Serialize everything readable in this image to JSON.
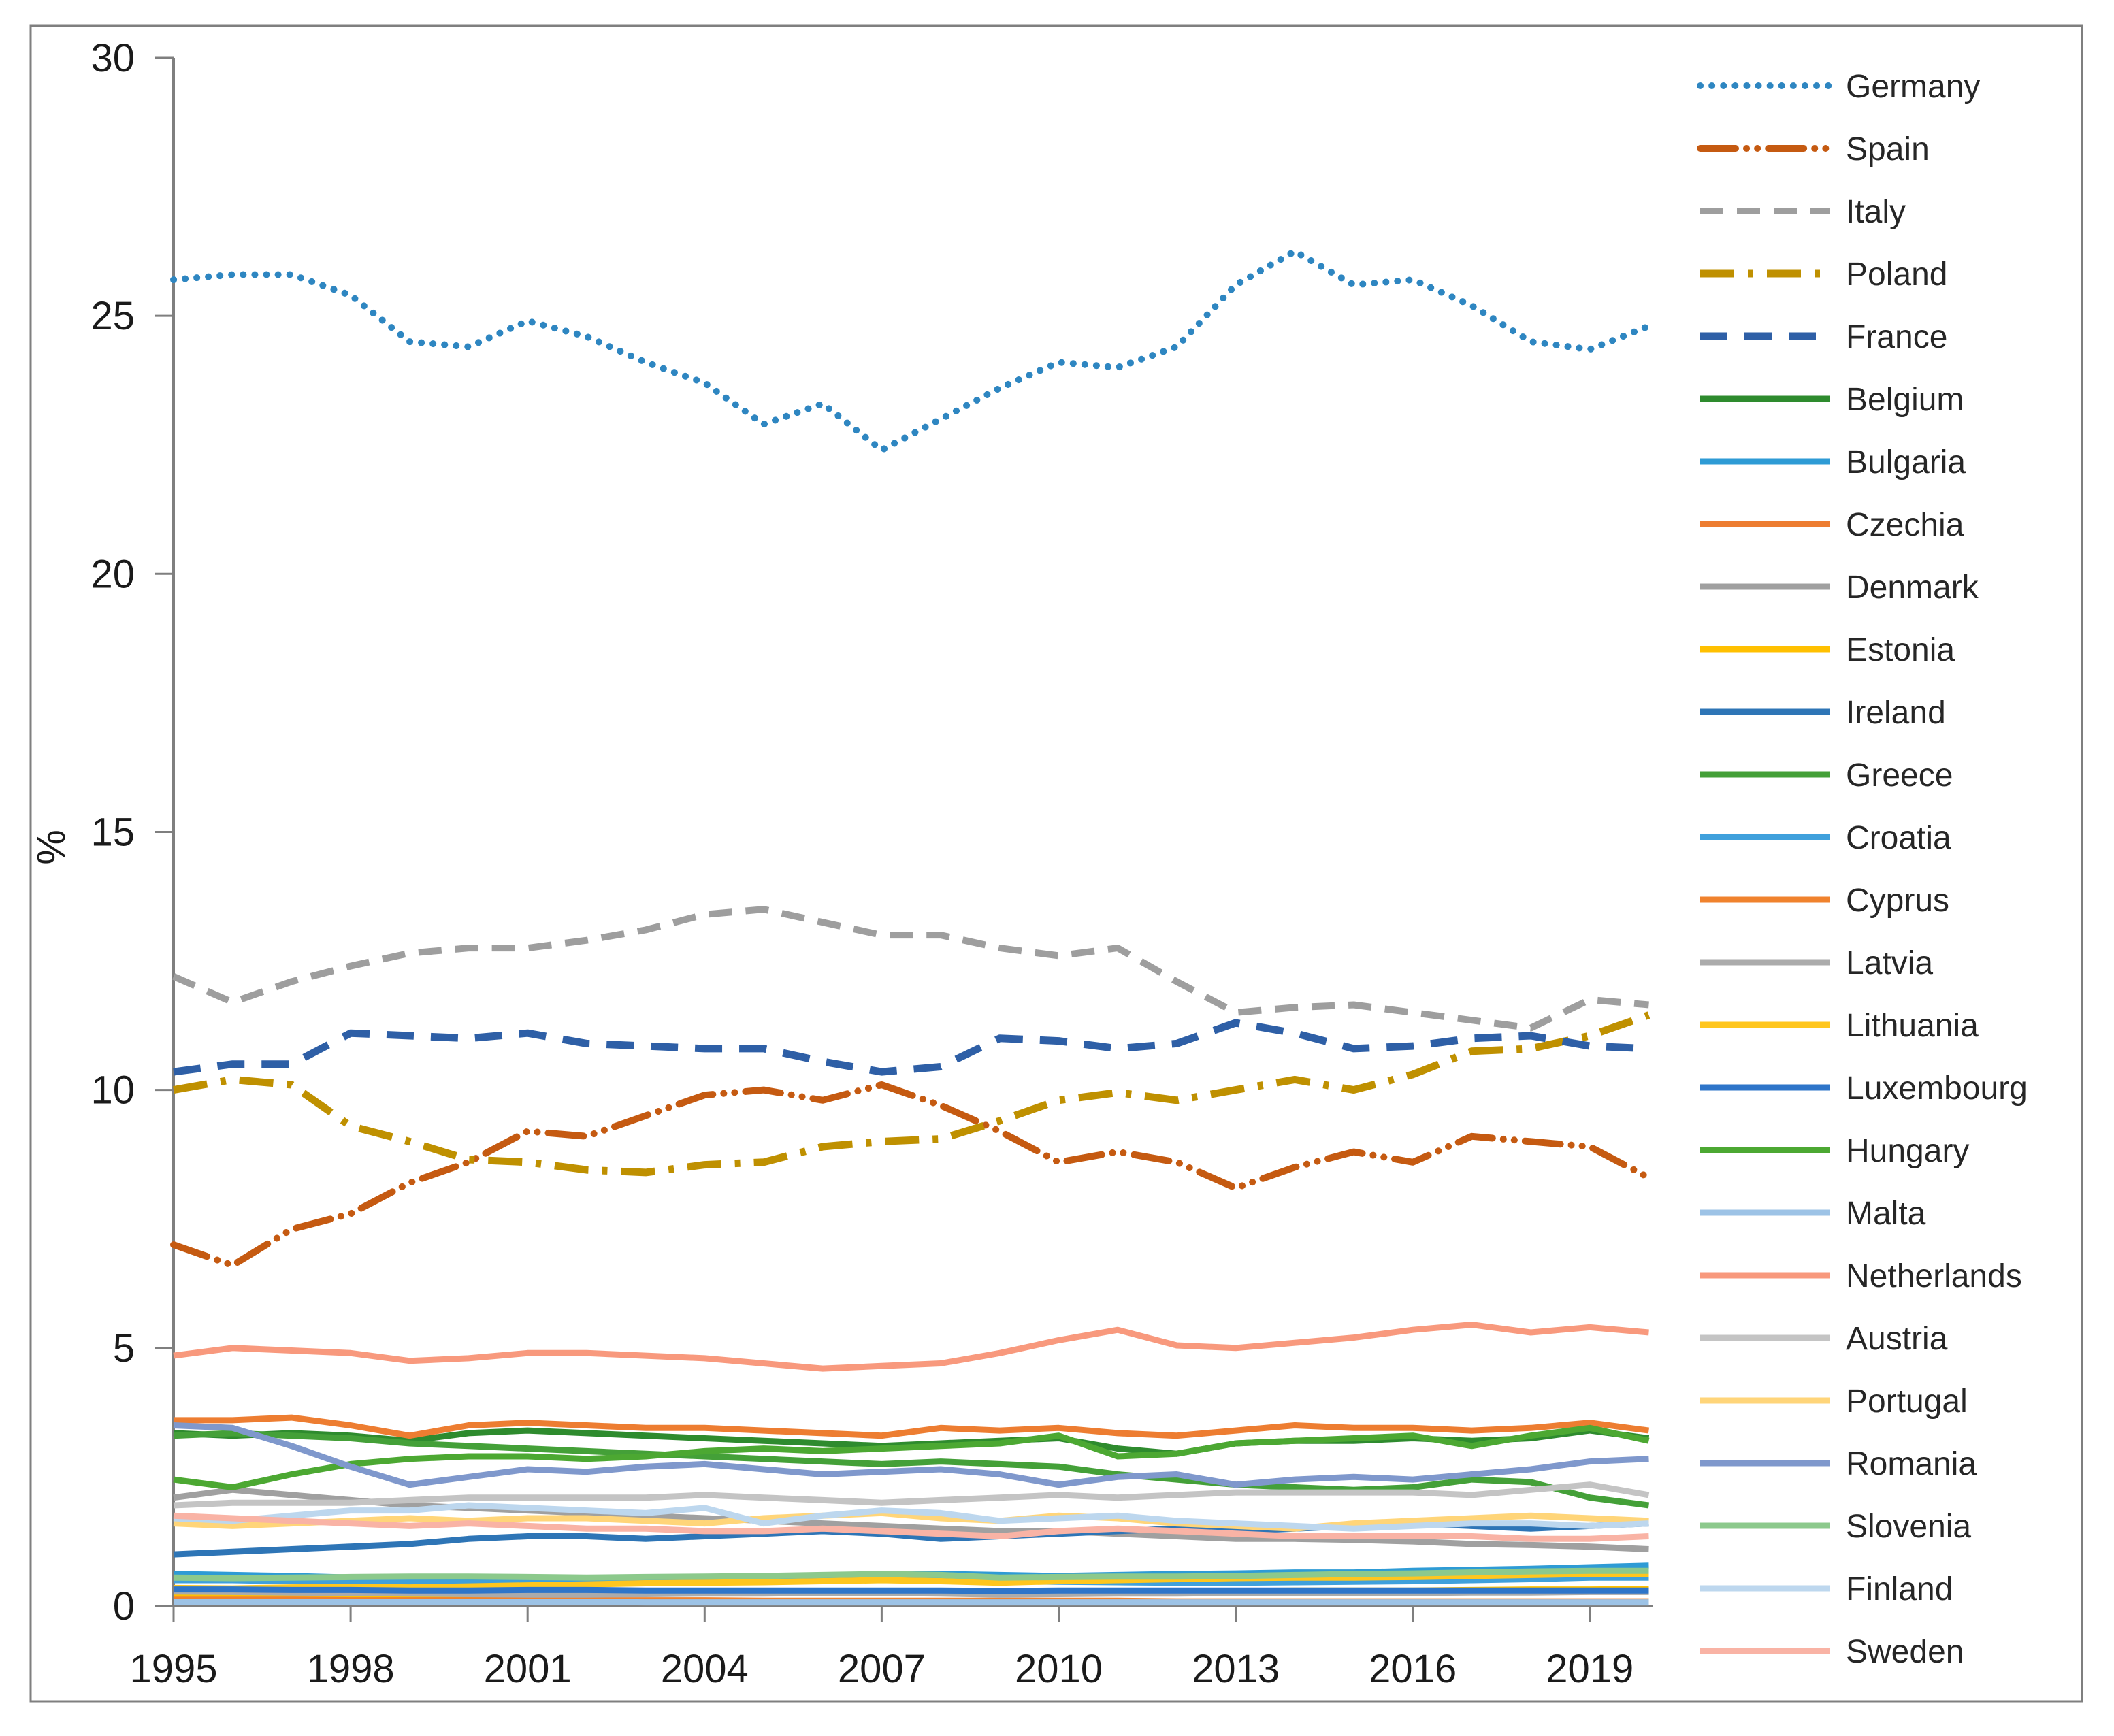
{
  "figure": {
    "background": "#FFFFFF",
    "border_color": "#7F7F7F",
    "axis_color": "#7F7F7F",
    "tick_text_color": "#1A1A1A",
    "legend_text_color": "#262626"
  },
  "axes": {
    "ylabel": "%",
    "y_tick_labels": [
      "0",
      "5",
      "10",
      "15",
      "20",
      "25",
      "30"
    ],
    "y_tick_values": [
      0,
      5,
      10,
      15,
      20,
      25,
      30
    ],
    "x_tick_labels": [
      "1995",
      "1998",
      "2001",
      "2004",
      "2007",
      "2010",
      "2013",
      "2016",
      "2019"
    ],
    "x_tick_values": [
      1995,
      1998,
      2001,
      2004,
      2007,
      2010,
      2013,
      2016,
      2019
    ]
  },
  "chart_data": {
    "type": "line",
    "title": "",
    "xlabel": "",
    "ylabel": "%",
    "ylim": [
      0,
      30
    ],
    "xlim": [
      1995,
      2020
    ],
    "grid": false,
    "legend_position": "right",
    "x": [
      1995,
      1996,
      1997,
      1998,
      1999,
      2000,
      2001,
      2002,
      2003,
      2004,
      2005,
      2006,
      2007,
      2008,
      2009,
      2010,
      2011,
      2012,
      2013,
      2014,
      2015,
      2016,
      2017,
      2018,
      2019,
      2020
    ],
    "series": [
      {
        "name": "Germany",
        "color": "#2E86C1",
        "line_style": "dotted",
        "values": [
          25.7,
          25.8,
          25.8,
          25.4,
          24.5,
          24.4,
          24.9,
          24.6,
          24.1,
          23.7,
          22.9,
          23.3,
          22.4,
          23.0,
          23.6,
          24.1,
          24.0,
          24.4,
          25.6,
          26.25,
          25.6,
          25.7,
          25.2,
          24.5,
          24.35,
          24.8
        ]
      },
      {
        "name": "Spain",
        "color": "#C55A11",
        "line_style": "dashdotdot",
        "values": [
          7.0,
          6.6,
          7.3,
          7.6,
          8.2,
          8.6,
          9.2,
          9.1,
          9.5,
          9.9,
          10.0,
          9.8,
          10.1,
          9.7,
          9.2,
          8.6,
          8.8,
          8.6,
          8.1,
          8.5,
          8.8,
          8.6,
          9.1,
          9.0,
          8.9,
          8.3
        ]
      },
      {
        "name": "Italy",
        "color": "#9E9E9E",
        "line_style": "dashed",
        "values": [
          12.2,
          11.7,
          12.1,
          12.4,
          12.65,
          12.75,
          12.75,
          12.9,
          13.1,
          13.4,
          13.5,
          13.25,
          13.0,
          13.0,
          12.75,
          12.6,
          12.75,
          12.1,
          11.5,
          11.6,
          11.65,
          11.5,
          11.35,
          11.2,
          11.75,
          11.65
        ]
      },
      {
        "name": "Poland",
        "color": "#BF9000",
        "line_style": "dashdot",
        "values": [
          10.0,
          10.2,
          10.1,
          9.3,
          9.0,
          8.65,
          8.6,
          8.45,
          8.4,
          8.55,
          8.6,
          8.9,
          9.0,
          9.05,
          9.4,
          9.8,
          9.95,
          9.8,
          10.0,
          10.2,
          10.0,
          10.3,
          10.75,
          10.8,
          11.05,
          11.45
        ]
      },
      {
        "name": "France",
        "color": "#2E5FA6",
        "line_style": "longdash",
        "values": [
          10.35,
          10.5,
          10.5,
          11.1,
          11.05,
          11.0,
          11.1,
          10.9,
          10.85,
          10.8,
          10.8,
          10.55,
          10.35,
          10.45,
          11.0,
          10.95,
          10.8,
          10.9,
          11.3,
          11.1,
          10.8,
          10.85,
          11.0,
          11.05,
          10.85,
          10.8
        ]
      },
      {
        "name": "Belgium",
        "color": "#2E8B2E",
        "line_style": "solid",
        "values": [
          3.35,
          3.3,
          3.35,
          3.3,
          3.2,
          3.35,
          3.4,
          3.35,
          3.3,
          3.25,
          3.2,
          3.15,
          3.1,
          3.15,
          3.2,
          3.25,
          3.05,
          2.95,
          3.15,
          3.2,
          3.2,
          3.25,
          3.2,
          3.25,
          3.4,
          3.25
        ]
      },
      {
        "name": "Bulgaria",
        "color": "#2E9BD5",
        "line_style": "solid",
        "values": [
          0.62,
          0.6,
          0.58,
          0.55,
          0.5,
          0.48,
          0.5,
          0.5,
          0.52,
          0.55,
          0.55,
          0.58,
          0.6,
          0.62,
          0.6,
          0.58,
          0.6,
          0.62,
          0.63,
          0.65,
          0.65,
          0.68,
          0.7,
          0.72,
          0.75,
          0.78
        ]
      },
      {
        "name": "Czechia",
        "color": "#ED7D31",
        "line_style": "solid",
        "values": [
          3.6,
          3.6,
          3.65,
          3.5,
          3.3,
          3.5,
          3.55,
          3.5,
          3.45,
          3.45,
          3.4,
          3.35,
          3.3,
          3.45,
          3.4,
          3.45,
          3.35,
          3.3,
          3.4,
          3.5,
          3.45,
          3.45,
          3.4,
          3.45,
          3.55,
          3.4
        ]
      },
      {
        "name": "Denmark",
        "color": "#A0A0A0",
        "line_style": "solid",
        "values": [
          2.1,
          2.25,
          2.15,
          2.05,
          1.95,
          1.9,
          1.85,
          1.8,
          1.75,
          1.7,
          1.65,
          1.6,
          1.55,
          1.5,
          1.45,
          1.45,
          1.4,
          1.35,
          1.3,
          1.3,
          1.28,
          1.25,
          1.2,
          1.18,
          1.15,
          1.1
        ]
      },
      {
        "name": "Estonia",
        "color": "#FFC000",
        "line_style": "solid",
        "values": [
          0.2,
          0.2,
          0.21,
          0.21,
          0.2,
          0.22,
          0.23,
          0.24,
          0.25,
          0.26,
          0.26,
          0.27,
          0.28,
          0.26,
          0.24,
          0.26,
          0.28,
          0.28,
          0.29,
          0.3,
          0.3,
          0.3,
          0.31,
          0.32,
          0.32,
          0.33
        ]
      },
      {
        "name": "Ireland",
        "color": "#2E75B6",
        "line_style": "solid",
        "values": [
          1.0,
          1.05,
          1.1,
          1.15,
          1.2,
          1.3,
          1.35,
          1.35,
          1.3,
          1.35,
          1.4,
          1.45,
          1.4,
          1.3,
          1.35,
          1.4,
          1.45,
          1.5,
          1.45,
          1.5,
          1.55,
          1.6,
          1.55,
          1.5,
          1.55,
          1.6
        ]
      },
      {
        "name": "Greece",
        "color": "#44A038",
        "line_style": "solid",
        "values": [
          3.3,
          3.35,
          3.3,
          3.25,
          3.15,
          3.1,
          3.05,
          3.0,
          2.95,
          2.9,
          2.85,
          2.8,
          2.75,
          2.8,
          2.75,
          2.7,
          2.55,
          2.45,
          2.35,
          2.3,
          2.25,
          2.3,
          2.45,
          2.4,
          2.1,
          1.95
        ]
      },
      {
        "name": "Croatia",
        "color": "#3FA0DC",
        "line_style": "solid",
        "values": [
          0.5,
          0.5,
          0.48,
          0.47,
          0.45,
          0.44,
          0.45,
          0.45,
          0.46,
          0.47,
          0.48,
          0.5,
          0.5,
          0.5,
          0.48,
          0.47,
          0.46,
          0.45,
          0.45,
          0.46,
          0.47,
          0.48,
          0.5,
          0.52,
          0.55,
          0.55
        ]
      },
      {
        "name": "Cyprus",
        "color": "#F0822D",
        "line_style": "solid",
        "values": [
          0.12,
          0.12,
          0.12,
          0.11,
          0.11,
          0.11,
          0.11,
          0.11,
          0.11,
          0.11,
          0.1,
          0.1,
          0.1,
          0.1,
          0.1,
          0.1,
          0.1,
          0.09,
          0.09,
          0.09,
          0.09,
          0.09,
          0.09,
          0.09,
          0.09,
          0.09
        ]
      },
      {
        "name": "Latvia",
        "color": "#ABABAB",
        "line_style": "solid",
        "values": [
          0.28,
          0.27,
          0.26,
          0.25,
          0.24,
          0.23,
          0.22,
          0.22,
          0.23,
          0.24,
          0.24,
          0.25,
          0.25,
          0.24,
          0.22,
          0.23,
          0.24,
          0.24,
          0.25,
          0.25,
          0.25,
          0.25,
          0.26,
          0.26,
          0.27,
          0.27
        ]
      },
      {
        "name": "Lithuania",
        "color": "#FFC61E",
        "line_style": "solid",
        "values": [
          0.35,
          0.34,
          0.36,
          0.37,
          0.36,
          0.38,
          0.4,
          0.42,
          0.44,
          0.45,
          0.46,
          0.48,
          0.5,
          0.48,
          0.45,
          0.48,
          0.5,
          0.52,
          0.54,
          0.55,
          0.55,
          0.56,
          0.58,
          0.6,
          0.62,
          0.62
        ]
      },
      {
        "name": "Luxembourg",
        "color": "#2E75C9",
        "line_style": "solid",
        "values": [
          0.32,
          0.32,
          0.31,
          0.31,
          0.3,
          0.3,
          0.31,
          0.31,
          0.3,
          0.3,
          0.3,
          0.3,
          0.3,
          0.3,
          0.29,
          0.3,
          0.3,
          0.3,
          0.3,
          0.3,
          0.3,
          0.3,
          0.3,
          0.3,
          0.3,
          0.3
        ]
      },
      {
        "name": "Hungary",
        "color": "#4CA832",
        "line_style": "solid",
        "values": [
          2.45,
          2.3,
          2.55,
          2.75,
          2.85,
          2.9,
          2.9,
          2.85,
          2.9,
          3.0,
          3.05,
          3.0,
          3.05,
          3.1,
          3.15,
          3.3,
          2.9,
          2.95,
          3.15,
          3.2,
          3.25,
          3.3,
          3.1,
          3.3,
          3.45,
          3.2
        ]
      },
      {
        "name": "Malta",
        "color": "#9DC3E6",
        "line_style": "solid",
        "values": [
          0.08,
          0.08,
          0.08,
          0.08,
          0.08,
          0.08,
          0.08,
          0.08,
          0.07,
          0.07,
          0.07,
          0.07,
          0.07,
          0.07,
          0.07,
          0.07,
          0.07,
          0.07,
          0.07,
          0.07,
          0.07,
          0.07,
          0.07,
          0.07,
          0.07,
          0.07
        ]
      },
      {
        "name": "Netherlands",
        "color": "#F8997D",
        "line_style": "solid",
        "values": [
          4.85,
          5.0,
          4.95,
          4.9,
          4.75,
          4.8,
          4.9,
          4.9,
          4.85,
          4.8,
          4.7,
          4.6,
          4.65,
          4.7,
          4.9,
          5.15,
          5.35,
          5.05,
          5.0,
          5.1,
          5.2,
          5.35,
          5.45,
          5.3,
          5.4,
          5.3
        ]
      },
      {
        "name": "Austria",
        "color": "#C4C4C4",
        "line_style": "solid",
        "values": [
          1.95,
          2.0,
          2.0,
          2.0,
          2.05,
          2.1,
          2.1,
          2.1,
          2.1,
          2.15,
          2.1,
          2.05,
          2.0,
          2.05,
          2.1,
          2.15,
          2.1,
          2.15,
          2.2,
          2.2,
          2.2,
          2.2,
          2.15,
          2.25,
          2.35,
          2.15
        ]
      },
      {
        "name": "Portugal",
        "color": "#FFD579",
        "line_style": "solid",
        "values": [
          1.6,
          1.55,
          1.6,
          1.65,
          1.7,
          1.65,
          1.7,
          1.7,
          1.65,
          1.6,
          1.7,
          1.75,
          1.8,
          1.7,
          1.65,
          1.75,
          1.7,
          1.6,
          1.55,
          1.5,
          1.6,
          1.65,
          1.7,
          1.75,
          1.7,
          1.65
        ]
      },
      {
        "name": "Romania",
        "color": "#7F98CC",
        "line_style": "solid",
        "values": [
          3.5,
          3.45,
          3.1,
          2.7,
          2.35,
          2.5,
          2.65,
          2.6,
          2.7,
          2.75,
          2.65,
          2.55,
          2.6,
          2.65,
          2.55,
          2.35,
          2.5,
          2.55,
          2.35,
          2.45,
          2.5,
          2.45,
          2.55,
          2.65,
          2.8,
          2.85
        ]
      },
      {
        "name": "Slovenia",
        "color": "#8CC98C",
        "line_style": "solid",
        "values": [
          0.55,
          0.54,
          0.55,
          0.56,
          0.57,
          0.57,
          0.56,
          0.55,
          0.56,
          0.57,
          0.58,
          0.6,
          0.62,
          0.6,
          0.55,
          0.56,
          0.57,
          0.57,
          0.58,
          0.6,
          0.62,
          0.63,
          0.65,
          0.67,
          0.68,
          0.68
        ]
      },
      {
        "name": "Finland",
        "color": "#BDD7EE",
        "line_style": "solid",
        "values": [
          1.7,
          1.65,
          1.75,
          1.85,
          1.85,
          1.95,
          1.9,
          1.85,
          1.8,
          1.9,
          1.6,
          1.75,
          1.85,
          1.8,
          1.65,
          1.7,
          1.75,
          1.65,
          1.6,
          1.55,
          1.5,
          1.55,
          1.6,
          1.6,
          1.55,
          1.6
        ]
      },
      {
        "name": "Sweden",
        "color": "#F9B3A5",
        "line_style": "solid",
        "values": [
          1.75,
          1.7,
          1.65,
          1.6,
          1.55,
          1.6,
          1.55,
          1.5,
          1.5,
          1.45,
          1.45,
          1.5,
          1.45,
          1.4,
          1.35,
          1.45,
          1.5,
          1.45,
          1.4,
          1.35,
          1.35,
          1.35,
          1.35,
          1.3,
          1.3,
          1.35
        ]
      }
    ]
  }
}
